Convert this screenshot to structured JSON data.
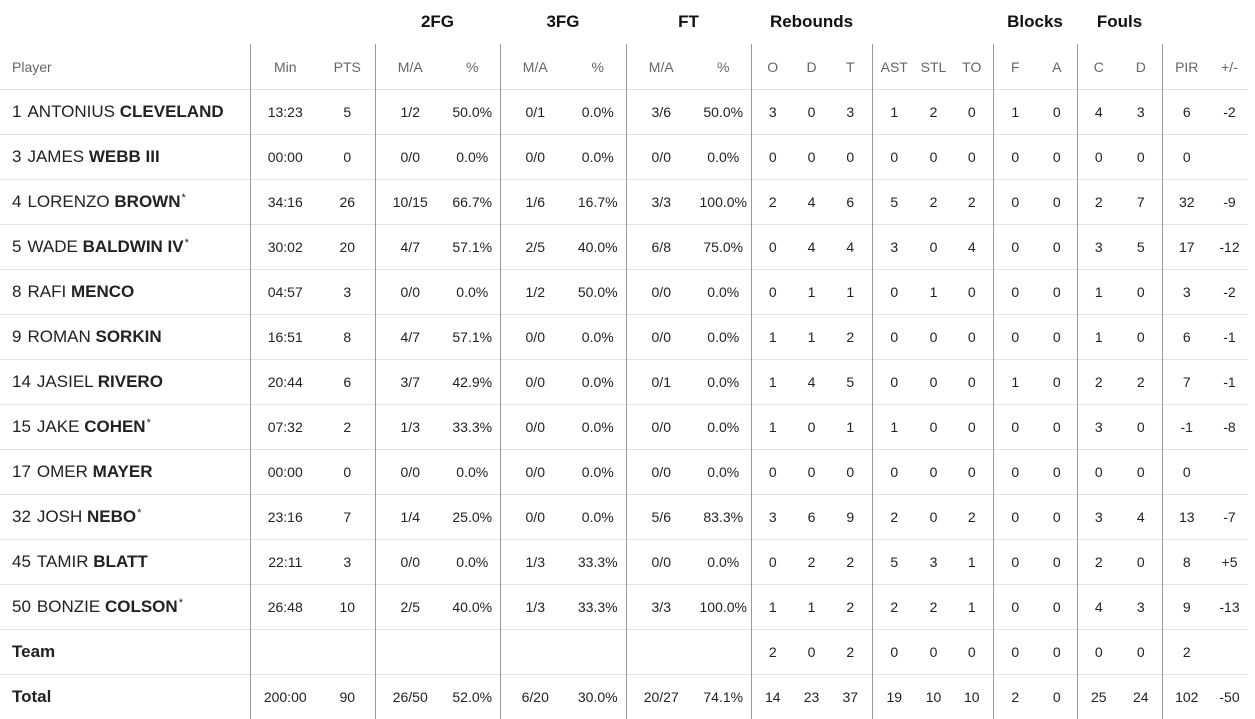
{
  "groups": {
    "fg2": "2FG",
    "fg3": "3FG",
    "ft": "FT",
    "rebounds": "Rebounds",
    "blocks": "Blocks",
    "fouls": "Fouls"
  },
  "columns": {
    "player": "Player",
    "min": "Min",
    "pts": "PTS",
    "fg2_ma": "M/A",
    "fg2_pct": "%",
    "fg3_ma": "M/A",
    "fg3_pct": "%",
    "ft_ma": "M/A",
    "ft_pct": "%",
    "reb_o": "O",
    "reb_d": "D",
    "reb_t": "T",
    "ast": "AST",
    "stl": "STL",
    "to": "TO",
    "blk_f": "F",
    "blk_a": "A",
    "foul_c": "C",
    "foul_d": "D",
    "pir": "PIR",
    "pm": "+/-"
  },
  "players": [
    {
      "num": "1",
      "first": "ANTONIUS",
      "last": "CLEVELAND",
      "star": "",
      "min": "13:23",
      "pts": "5",
      "fg2_ma": "1/2",
      "fg2_pct": "50.0%",
      "fg3_ma": "0/1",
      "fg3_pct": "0.0%",
      "ft_ma": "3/6",
      "ft_pct": "50.0%",
      "reb_o": "3",
      "reb_d": "0",
      "reb_t": "3",
      "ast": "1",
      "stl": "2",
      "to": "0",
      "blk_f": "1",
      "blk_a": "0",
      "foul_c": "4",
      "foul_d": "3",
      "pir": "6",
      "pm": "-2"
    },
    {
      "num": "3",
      "first": "JAMES",
      "last": "WEBB III",
      "star": "",
      "min": "00:00",
      "pts": "0",
      "fg2_ma": "0/0",
      "fg2_pct": "0.0%",
      "fg3_ma": "0/0",
      "fg3_pct": "0.0%",
      "ft_ma": "0/0",
      "ft_pct": "0.0%",
      "reb_o": "0",
      "reb_d": "0",
      "reb_t": "0",
      "ast": "0",
      "stl": "0",
      "to": "0",
      "blk_f": "0",
      "blk_a": "0",
      "foul_c": "0",
      "foul_d": "0",
      "pir": "0",
      "pm": ""
    },
    {
      "num": "4",
      "first": "LORENZO",
      "last": "BROWN",
      "star": "*",
      "min": "34:16",
      "pts": "26",
      "fg2_ma": "10/15",
      "fg2_pct": "66.7%",
      "fg3_ma": "1/6",
      "fg3_pct": "16.7%",
      "ft_ma": "3/3",
      "ft_pct": "100.0%",
      "reb_o": "2",
      "reb_d": "4",
      "reb_t": "6",
      "ast": "5",
      "stl": "2",
      "to": "2",
      "blk_f": "0",
      "blk_a": "0",
      "foul_c": "2",
      "foul_d": "7",
      "pir": "32",
      "pm": "-9"
    },
    {
      "num": "5",
      "first": "WADE",
      "last": "BALDWIN IV",
      "star": "*",
      "min": "30:02",
      "pts": "20",
      "fg2_ma": "4/7",
      "fg2_pct": "57.1%",
      "fg3_ma": "2/5",
      "fg3_pct": "40.0%",
      "ft_ma": "6/8",
      "ft_pct": "75.0%",
      "reb_o": "0",
      "reb_d": "4",
      "reb_t": "4",
      "ast": "3",
      "stl": "0",
      "to": "4",
      "blk_f": "0",
      "blk_a": "0",
      "foul_c": "3",
      "foul_d": "5",
      "pir": "17",
      "pm": "-12"
    },
    {
      "num": "8",
      "first": "RAFI",
      "last": "MENCO",
      "star": "",
      "min": "04:57",
      "pts": "3",
      "fg2_ma": "0/0",
      "fg2_pct": "0.0%",
      "fg3_ma": "1/2",
      "fg3_pct": "50.0%",
      "ft_ma": "0/0",
      "ft_pct": "0.0%",
      "reb_o": "0",
      "reb_d": "1",
      "reb_t": "1",
      "ast": "0",
      "stl": "1",
      "to": "0",
      "blk_f": "0",
      "blk_a": "0",
      "foul_c": "1",
      "foul_d": "0",
      "pir": "3",
      "pm": "-2"
    },
    {
      "num": "9",
      "first": "ROMAN",
      "last": "SORKIN",
      "star": "",
      "min": "16:51",
      "pts": "8",
      "fg2_ma": "4/7",
      "fg2_pct": "57.1%",
      "fg3_ma": "0/0",
      "fg3_pct": "0.0%",
      "ft_ma": "0/0",
      "ft_pct": "0.0%",
      "reb_o": "1",
      "reb_d": "1",
      "reb_t": "2",
      "ast": "0",
      "stl": "0",
      "to": "0",
      "blk_f": "0",
      "blk_a": "0",
      "foul_c": "1",
      "foul_d": "0",
      "pir": "6",
      "pm": "-1"
    },
    {
      "num": "14",
      "first": "JASIEL",
      "last": "RIVERO",
      "star": "",
      "min": "20:44",
      "pts": "6",
      "fg2_ma": "3/7",
      "fg2_pct": "42.9%",
      "fg3_ma": "0/0",
      "fg3_pct": "0.0%",
      "ft_ma": "0/1",
      "ft_pct": "0.0%",
      "reb_o": "1",
      "reb_d": "4",
      "reb_t": "5",
      "ast": "0",
      "stl": "0",
      "to": "0",
      "blk_f": "1",
      "blk_a": "0",
      "foul_c": "2",
      "foul_d": "2",
      "pir": "7",
      "pm": "-1"
    },
    {
      "num": "15",
      "first": "JAKE",
      "last": "COHEN",
      "star": "*",
      "min": "07:32",
      "pts": "2",
      "fg2_ma": "1/3",
      "fg2_pct": "33.3%",
      "fg3_ma": "0/0",
      "fg3_pct": "0.0%",
      "ft_ma": "0/0",
      "ft_pct": "0.0%",
      "reb_o": "1",
      "reb_d": "0",
      "reb_t": "1",
      "ast": "1",
      "stl": "0",
      "to": "0",
      "blk_f": "0",
      "blk_a": "0",
      "foul_c": "3",
      "foul_d": "0",
      "pir": "-1",
      "pm": "-8"
    },
    {
      "num": "17",
      "first": "OMER",
      "last": "MAYER",
      "star": "",
      "min": "00:00",
      "pts": "0",
      "fg2_ma": "0/0",
      "fg2_pct": "0.0%",
      "fg3_ma": "0/0",
      "fg3_pct": "0.0%",
      "ft_ma": "0/0",
      "ft_pct": "0.0%",
      "reb_o": "0",
      "reb_d": "0",
      "reb_t": "0",
      "ast": "0",
      "stl": "0",
      "to": "0",
      "blk_f": "0",
      "blk_a": "0",
      "foul_c": "0",
      "foul_d": "0",
      "pir": "0",
      "pm": ""
    },
    {
      "num": "32",
      "first": "JOSH",
      "last": "NEBO",
      "star": "*",
      "min": "23:16",
      "pts": "7",
      "fg2_ma": "1/4",
      "fg2_pct": "25.0%",
      "fg3_ma": "0/0",
      "fg3_pct": "0.0%",
      "ft_ma": "5/6",
      "ft_pct": "83.3%",
      "reb_o": "3",
      "reb_d": "6",
      "reb_t": "9",
      "ast": "2",
      "stl": "0",
      "to": "2",
      "blk_f": "0",
      "blk_a": "0",
      "foul_c": "3",
      "foul_d": "4",
      "pir": "13",
      "pm": "-7"
    },
    {
      "num": "45",
      "first": "TAMIR",
      "last": "BLATT",
      "star": "",
      "min": "22:11",
      "pts": "3",
      "fg2_ma": "0/0",
      "fg2_pct": "0.0%",
      "fg3_ma": "1/3",
      "fg3_pct": "33.3%",
      "ft_ma": "0/0",
      "ft_pct": "0.0%",
      "reb_o": "0",
      "reb_d": "2",
      "reb_t": "2",
      "ast": "5",
      "stl": "3",
      "to": "1",
      "blk_f": "0",
      "blk_a": "0",
      "foul_c": "2",
      "foul_d": "0",
      "pir": "8",
      "pm": "+5"
    },
    {
      "num": "50",
      "first": "BONZIE",
      "last": "COLSON",
      "star": "*",
      "min": "26:48",
      "pts": "10",
      "fg2_ma": "2/5",
      "fg2_pct": "40.0%",
      "fg3_ma": "1/3",
      "fg3_pct": "33.3%",
      "ft_ma": "3/3",
      "ft_pct": "100.0%",
      "reb_o": "1",
      "reb_d": "1",
      "reb_t": "2",
      "ast": "2",
      "stl": "2",
      "to": "1",
      "blk_f": "0",
      "blk_a": "0",
      "foul_c": "4",
      "foul_d": "3",
      "pir": "9",
      "pm": "-13"
    }
  ],
  "team": {
    "label": "Team",
    "min": "",
    "pts": "",
    "fg2_ma": "",
    "fg2_pct": "",
    "fg3_ma": "",
    "fg3_pct": "",
    "ft_ma": "",
    "ft_pct": "",
    "reb_o": "2",
    "reb_d": "0",
    "reb_t": "2",
    "ast": "0",
    "stl": "0",
    "to": "0",
    "blk_f": "0",
    "blk_a": "0",
    "foul_c": "0",
    "foul_d": "0",
    "pir": "2",
    "pm": ""
  },
  "total": {
    "label": "Total",
    "min": "200:00",
    "pts": "90",
    "fg2_ma": "26/50",
    "fg2_pct": "52.0%",
    "fg3_ma": "6/20",
    "fg3_pct": "30.0%",
    "ft_ma": "20/27",
    "ft_pct": "74.1%",
    "reb_o": "14",
    "reb_d": "23",
    "reb_t": "37",
    "ast": "19",
    "stl": "10",
    "to": "10",
    "blk_f": "2",
    "blk_a": "0",
    "foul_c": "25",
    "foul_d": "24",
    "pir": "102",
    "pm": "-50"
  }
}
